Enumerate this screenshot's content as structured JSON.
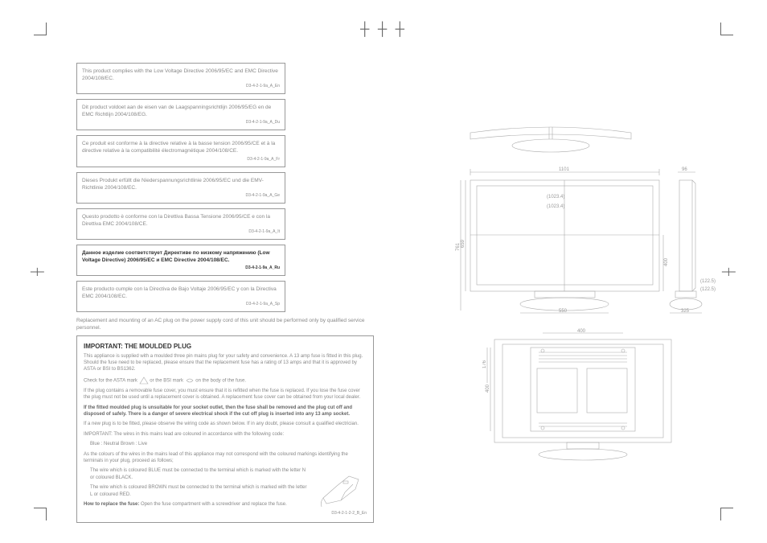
{
  "crop_marks": {
    "color": "#666666"
  },
  "compliance": [
    {
      "text": "This product complies with the Low Voltage Directive 2006/95/EC and EMC Directive 2004/108/EC.",
      "ref": "D3-4-2-1-9a_A_En",
      "bold": false
    },
    {
      "text": "Dit product voldoet aan de eisen van de Laagspanningsrichtlijn 2006/95/EG en de EMC Richtlijn 2004/108/EG.",
      "ref": "D3-4-2-1-9a_A_Du",
      "bold": false
    },
    {
      "text": "Ce produit est conforme à la directive relative à la basse tension 2006/95/CE et à la directive relative à la compatibilité électromagnétique 2004/108/CE.",
      "ref": "D3-4-2-1-9a_A_Fr",
      "bold": false
    },
    {
      "text": "Dieses Produkt erfüllt die Niederspannungsrichtlinie 2006/95/EC und die EMV-Richtlinie 2004/108/EC.",
      "ref": "D3-4-2-1-9a_A_Ge",
      "bold": false
    },
    {
      "text": "Questo prodotto è conforme con la Direttiva Bassa Tensione 2006/95/CE e con la Direttiva EMC 2004/108/CE.",
      "ref": "D3-4-2-1-9a_A_It",
      "bold": false
    },
    {
      "text": "Данное изделие соответствует Директиве по низкому напряжению (Low Voltage Directive) 2006/95/EC и EMC Directive 2004/108/EC.",
      "ref": "D3-4-2-1-9a_A_Ru",
      "bold": true
    },
    {
      "text": "Este producto cumple con la Directiva de Bajo Voltaje 2006/95/EC y con la Directiva EMC 2004/108/EC.",
      "ref": "D3-4-2-1-9a_A_Sp",
      "bold": false
    }
  ],
  "notice": "Replacement and mounting of an AC plug on the power supply cord of this unit should be performed only by qualified service personnel.",
  "plug": {
    "title": "IMPORTANT: THE MOULDED PLUG",
    "p1": "This appliance is supplied with a moulded three pin mains plug for your safety and convenience. A 13 amp fuse is fitted in this plug. Should the fuse need to be replaced, please ensure that the replacement fuse has a rating of 13 amps and that it is approved by ASTA or BSI to BS1362.",
    "p2a": "Check for the ASTA mark",
    "p2b": "or the BSI mark",
    "p2c": "on the body of the fuse.",
    "p3": "If the plug contains a removable fuse cover, you must ensure that it is refitted when the fuse is replaced. If you lose the fuse cover the plug must not be used until a replacement cover is obtained. A replacement fuse cover can be obtained from your local dealer.",
    "p4": "If the fitted moulded plug is unsuitable for your socket outlet, then the fuse shall be removed and the plug cut off and disposed of safely. There is a danger of severe electrical shock if the cut off plug is inserted into any 13 amp socket.",
    "p5": "If a new plug is to be fitted, please observe the wiring code as shown below. If in any doubt, please consult a qualified electrician.",
    "p6": "IMPORTANT: The wires in this mains lead are coloured in accordance with the following code:",
    "p7": "Blue : Neutral   Brown : Live",
    "p8": "As the colours of the wires in the mains lead of this appliance may not correspond with the coloured markings identifying the terminals in your plug, proceed as follows;",
    "p9": "The wire which is coloured BLUE must be connected to the terminal which is marked with the letter N or coloured BLACK.",
    "p10": "The wire which is coloured BROWN must be connected to the terminal which is marked with the letter L or coloured RED.",
    "p11a": "How to replace the fuse:",
    "p11b": "Open the fuse compartment with a screwdriver and replace the fuse.",
    "ref": "D3-4-2-1-2-2_B_En"
  },
  "dims": {
    "width_top": "1101",
    "side_depth": "96",
    "screen_w1": "(1023.4)",
    "screen_w2": "(1023.4)",
    "height_left": "761",
    "height_mid": "659",
    "height_right": "400",
    "base_w": "550",
    "side_h1": "(122.5)",
    "side_h2": "(122.5)",
    "side_base": "325",
    "rear_w": "400",
    "rear_h1": "176",
    "rear_h2": "400"
  }
}
